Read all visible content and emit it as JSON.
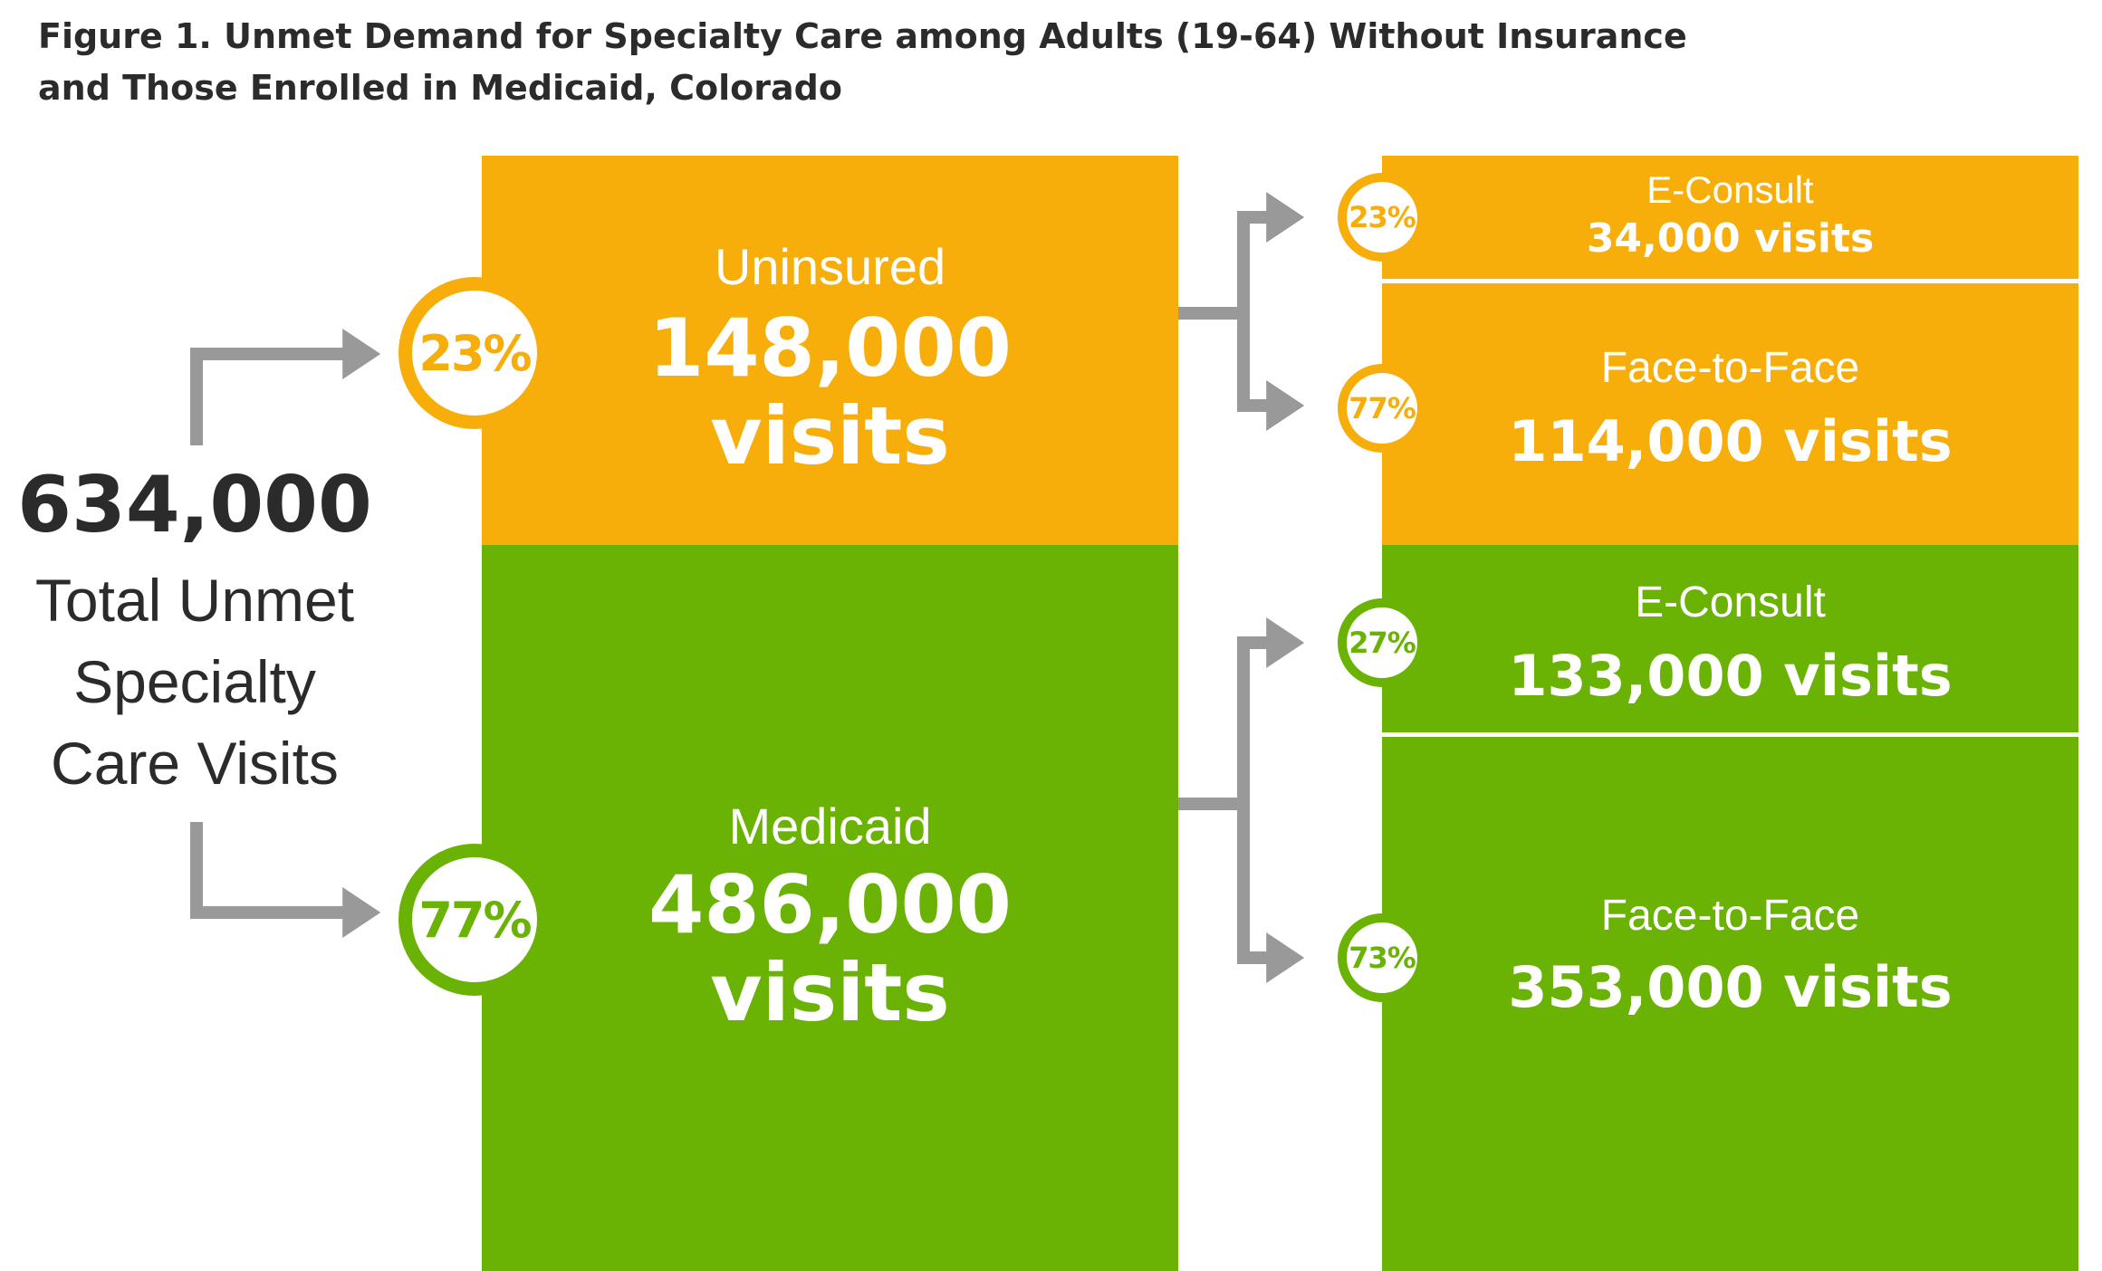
{
  "title": {
    "line1": "Figure 1. Unmet Demand for Specialty Care among Adults (19-64) Without Insurance",
    "line2": "and Those Enrolled in Medicaid, Colorado"
  },
  "total": {
    "value": "634,000",
    "label_line1": "Total Unmet",
    "label_line2": "Specialty",
    "label_line3": "Care Visits"
  },
  "uninsured": {
    "share": "23%",
    "label": "Uninsured",
    "value": "148,000",
    "unit": "visits",
    "econsult": {
      "share": "23%",
      "label": "E-Consult",
      "value": "34,000 visits"
    },
    "face": {
      "share": "77%",
      "label": "Face-to-Face",
      "value": "114,000 visits"
    }
  },
  "medicaid": {
    "share": "77%",
    "label": "Medicaid",
    "value": "486,000",
    "unit": "visits",
    "econsult": {
      "share": "27%",
      "label": "E-Consult",
      "value": "133,000 visits"
    },
    "face": {
      "share": "73%",
      "label": "Face-to-Face",
      "value": "353,000 visits"
    }
  },
  "colors": {
    "uninsured": "#f7ae0b",
    "medicaid": "#6ab304",
    "arrow": "#999999",
    "text": "#2b2b2b"
  }
}
